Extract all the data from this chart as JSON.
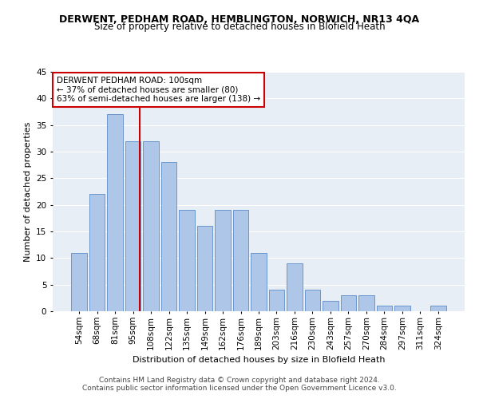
{
  "title": "DERWENT, PEDHAM ROAD, HEMBLINGTON, NORWICH, NR13 4QA",
  "subtitle": "Size of property relative to detached houses in Blofield Heath",
  "xlabel": "Distribution of detached houses by size in Blofield Heath",
  "ylabel": "Number of detached properties",
  "footnote1": "Contains HM Land Registry data © Crown copyright and database right 2024.",
  "footnote2": "Contains public sector information licensed under the Open Government Licence v3.0.",
  "categories": [
    "54sqm",
    "68sqm",
    "81sqm",
    "95sqm",
    "108sqm",
    "122sqm",
    "135sqm",
    "149sqm",
    "162sqm",
    "176sqm",
    "189sqm",
    "203sqm",
    "216sqm",
    "230sqm",
    "243sqm",
    "257sqm",
    "270sqm",
    "284sqm",
    "297sqm",
    "311sqm",
    "324sqm"
  ],
  "values": [
    11,
    22,
    37,
    32,
    32,
    28,
    19,
    16,
    19,
    19,
    11,
    4,
    9,
    4,
    2,
    3,
    3,
    1,
    1,
    0,
    1
  ],
  "bar_color": "#aec6e8",
  "bar_edge_color": "#5b8cc8",
  "vline_color": "#cc0000",
  "annotation_line1": "DERWENT PEDHAM ROAD: 100sqm",
  "annotation_line2": "← 37% of detached houses are smaller (80)",
  "annotation_line3": "63% of semi-detached houses are larger (138) →",
  "annotation_box_color": "#cc0000",
  "ylim": [
    0,
    45
  ],
  "yticks": [
    0,
    5,
    10,
    15,
    20,
    25,
    30,
    35,
    40,
    45
  ],
  "bg_color": "#e8eef5",
  "fig_bg": "#ffffff",
  "grid_color": "#ffffff",
  "title_fontsize": 9,
  "subtitle_fontsize": 8.5,
  "ylabel_fontsize": 8,
  "xlabel_fontsize": 8,
  "tick_fontsize": 7.5,
  "footnote_fontsize": 6.5
}
